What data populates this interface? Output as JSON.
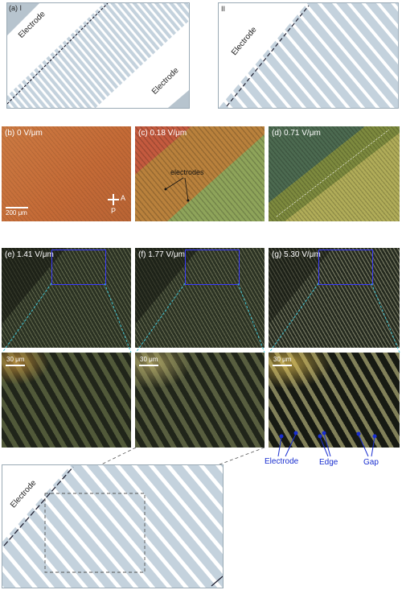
{
  "schematics": {
    "panel_a_label": "(a) I",
    "panel_a_electrode_top": "Electrode",
    "panel_a_electrode_bottom": "Electrode",
    "panel_ii_label": "II",
    "panel_ii_electrode": "Electrode",
    "bottom_electrode": "Electrode"
  },
  "micrographs_row1": [
    {
      "label": "(b) 0 V/μm"
    },
    {
      "label": "(c) 0.18 V/μm",
      "annotation": "electrodes"
    },
    {
      "label": "(d) 0.71 V/μm"
    }
  ],
  "scalebar_row1": "200 μm",
  "polarizer": {
    "analyzer": "A",
    "polarizer": "P"
  },
  "micrographs_row2": [
    {
      "label": "(e) 1.41 V/μm"
    },
    {
      "label": "(f) 1.77 V/μm"
    },
    {
      "label": "(g) 5.30 V/μm"
    }
  ],
  "zoom_scalebar": "30 μm",
  "zoom_annotations": {
    "electrode": "Electrode",
    "edge": "Edge",
    "gap": "Gap"
  },
  "colors": {
    "accent_blue": "#1a2fd0",
    "dash_cyan": "#3fc6d6",
    "schematic_stripe": "#c4d2dd"
  }
}
